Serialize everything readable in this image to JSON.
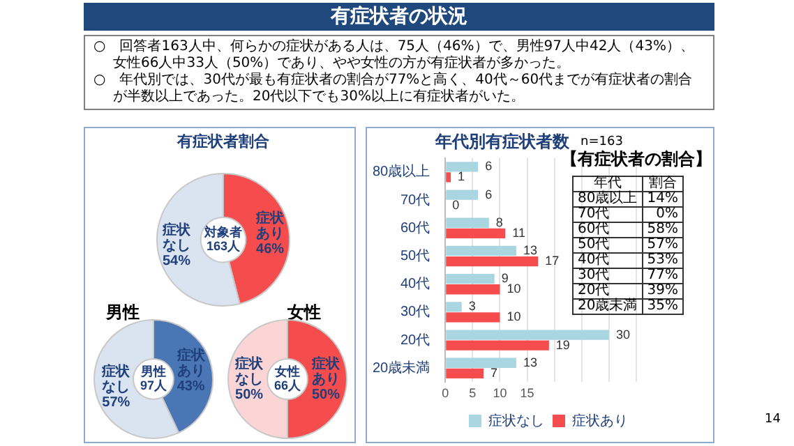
{
  "chart_data": [
    {
      "type": "other",
      "title": "有症状者の状況",
      "annotations": [
        "○　回答者163人中、何らかの症状がある人は、75人（46%）で、男性97人中42人（43%）、女性66人中33人（50%）であり、やや女性の方が有症状者が多かった。",
        "○　年代別では、30代が最も有症状者の割合が77%と高く、40代～60代までが有症状者の割合が半数以上であった。20代以下でも30%以上に有症状者がいた。",
        "14"
      ]
    },
    {
      "type": "donut",
      "title": "有症状者割合",
      "categories": [
        "症状あり",
        "症状なし"
      ],
      "values": [
        46,
        54
      ],
      "value_labels": [
        "46%",
        "54%"
      ],
      "colors": [
        "#f54d4d",
        "#dae3f0"
      ],
      "annotations": [
        "対象者\n163人"
      ]
    },
    {
      "type": "donut",
      "title": "男性",
      "categories": [
        "症状あり",
        "症状なし"
      ],
      "values": [
        43,
        57
      ],
      "value_labels": [
        "43%",
        "57%"
      ],
      "colors": [
        "#4a76b5",
        "#dae3f0"
      ],
      "annotations": [
        "男性\n97人"
      ]
    },
    {
      "type": "donut",
      "title": "女性",
      "categories": [
        "症状あり",
        "症状なし"
      ],
      "values": [
        50,
        50
      ],
      "value_labels": [
        "50%",
        "50%"
      ],
      "colors": [
        "#f54d4d",
        "#fbd4d6"
      ],
      "annotations": [
        "女性\n66人"
      ]
    },
    {
      "type": "bar",
      "orientation": "horizontal",
      "title": "年代別有症状者数",
      "annotations": [
        "n=163"
      ],
      "categories": [
        "80歳以上",
        "70代",
        "60代",
        "50代",
        "40代",
        "30代",
        "20代",
        "20歳未満"
      ],
      "series": [
        {
          "name": "症状なし",
          "color": "#a9d6e0",
          "values": [
            6,
            6,
            8,
            13,
            9,
            3,
            30,
            13
          ]
        },
        {
          "name": "症状あり",
          "color": "#f54d4d",
          "values": [
            1,
            0,
            11,
            17,
            10,
            10,
            19,
            7
          ]
        }
      ],
      "xlim": [
        0,
        35
      ],
      "xticks": [
        0,
        5,
        10,
        15,
        {
          "value": 20,
          "label": null
        },
        {
          "value": 25,
          "label": null
        },
        {
          "value": 30,
          "label": null
        },
        {
          "value": 35,
          "label": null
        }
      ],
      "grid": "x",
      "legend": "bottom right",
      "data_labels": true
    },
    {
      "type": "heatmap",
      "title": "【有症状者の割合】",
      "ylabel": "年代",
      "categories": [
        "割合"
      ],
      "y_categories": [
        "80歳以上",
        "70代",
        "60代",
        "50代",
        "40代",
        "30代",
        "20代",
        "20歳未満"
      ],
      "cells": [
        [
          14
        ],
        [
          0
        ],
        [
          58
        ],
        [
          57
        ],
        [
          53
        ],
        [
          77
        ],
        [
          39
        ],
        [
          35
        ]
      ],
      "cell_labels": [
        [
          "14%"
        ],
        [
          "0%"
        ],
        [
          "58%"
        ],
        [
          "57%"
        ],
        [
          "53%"
        ],
        [
          "77%"
        ],
        [
          "39%"
        ],
        [
          "35%"
        ]
      ]
    }
  ]
}
